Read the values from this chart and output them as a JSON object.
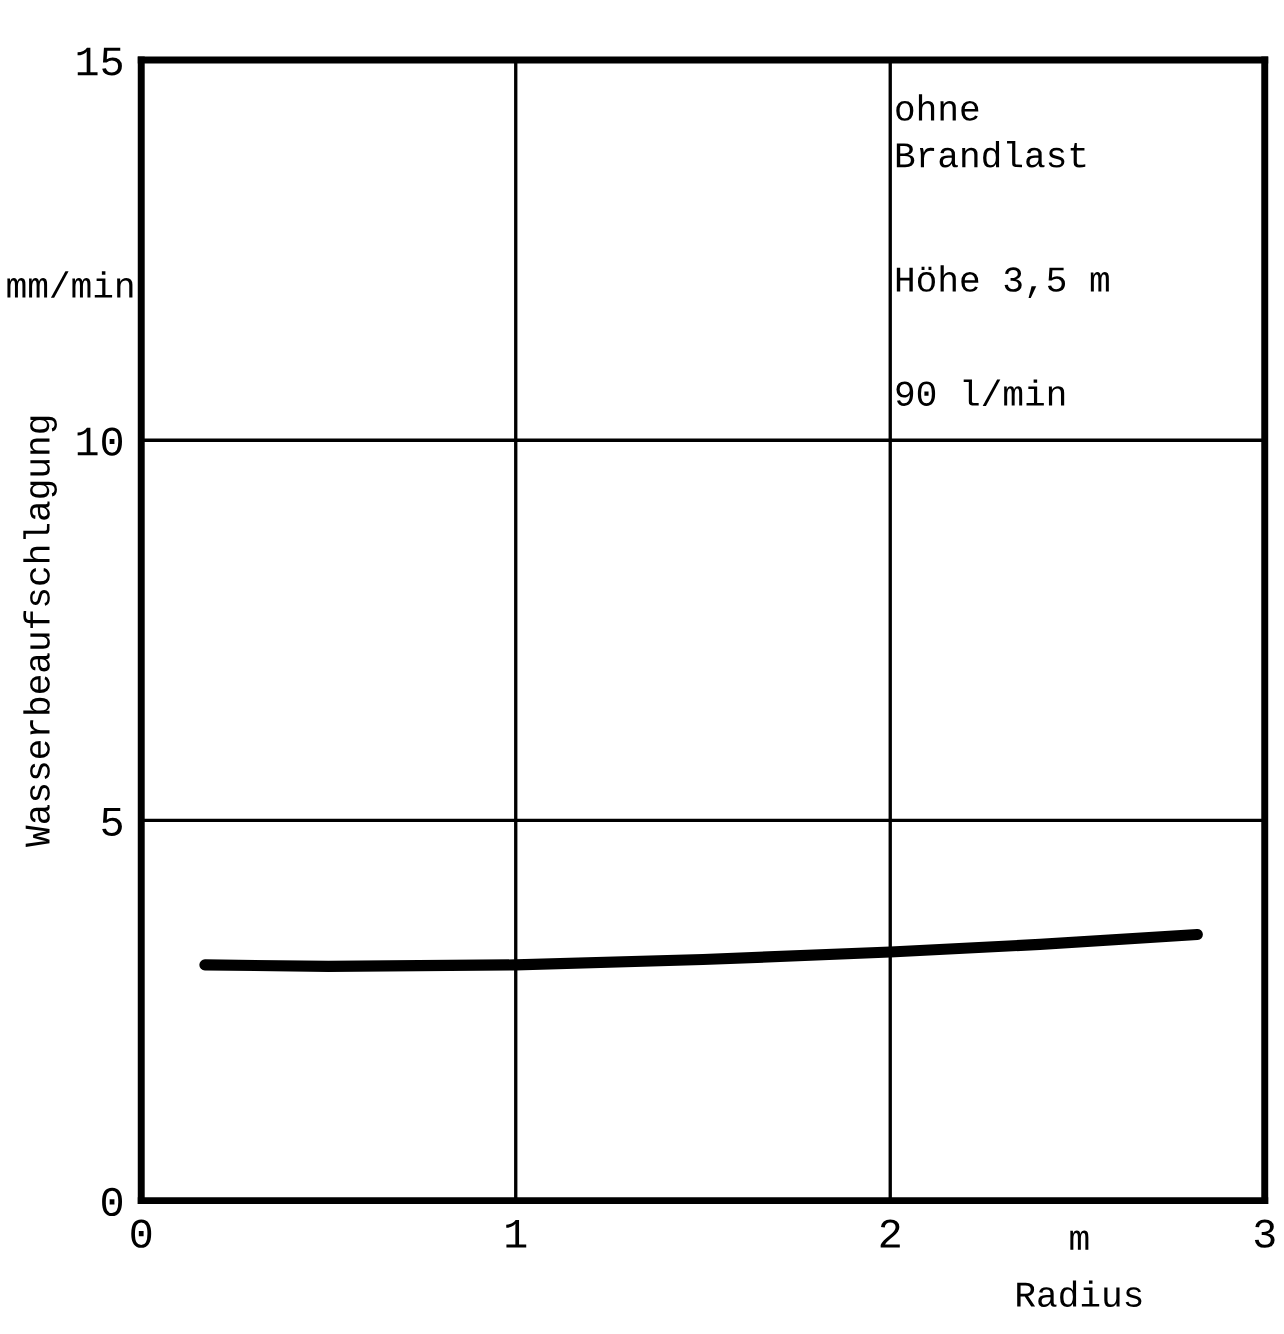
{
  "chart_data": {
    "type": "line",
    "ylabel": "Wasserbeaufschlagung",
    "xlabel": "Radius",
    "x": [
      0.17,
      0.5,
      1.0,
      1.5,
      2.0,
      2.4,
      2.82
    ],
    "series": [
      {
        "color": "#000000",
        "values": [
          3.1,
          3.08,
          3.1,
          3.17,
          3.27,
          3.37,
          3.5
        ]
      }
    ],
    "xlim": [
      0,
      3
    ],
    "ylim": [
      0,
      15
    ],
    "xticks": [
      0,
      1,
      2,
      3
    ],
    "yticks": [
      0,
      5,
      10,
      15
    ],
    "grid": true,
    "marker": "none",
    "line_style": "solid",
    "annotations": [
      "ohne\nBrandlast",
      "Höhe 3,5 m",
      "90 l/min",
      "mm/min",
      "m"
    ]
  }
}
